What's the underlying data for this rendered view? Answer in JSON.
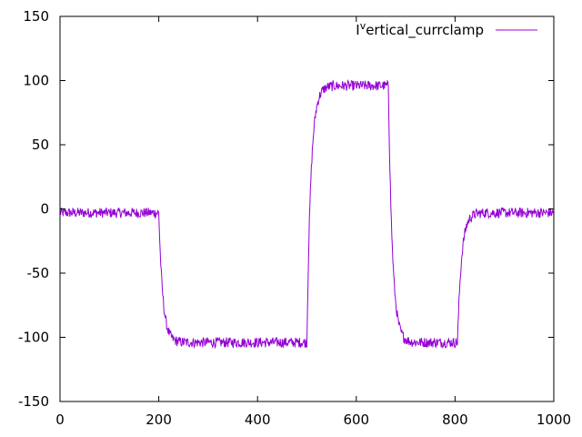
{
  "chart_data": {
    "type": "line",
    "title": "",
    "xlabel": "",
    "ylabel": "",
    "xlim": [
      0,
      1000
    ],
    "ylim": [
      -150,
      150
    ],
    "x_ticks": [
      0,
      200,
      400,
      600,
      800,
      1000
    ],
    "y_ticks": [
      -150,
      -100,
      -50,
      0,
      50,
      100,
      150
    ],
    "grid": false,
    "legend": {
      "placement": "top-right",
      "entries": [
        "I^vertical_currclamp"
      ]
    },
    "legend_display": {
      "base": "I",
      "superscript": "v",
      "rest": "ertical_currclamp"
    },
    "series": [
      {
        "name": "I^vertical_currclamp",
        "color": "#9400d3",
        "noise_amplitude": 4,
        "segments": [
          {
            "x_start": 0,
            "x_end": 200,
            "level": -3
          },
          {
            "x_start": 200,
            "x_end": 500,
            "from": -3,
            "to": -104,
            "tau": 8
          },
          {
            "x_start": 500,
            "x_end": 665,
            "from": -104,
            "to": 96,
            "tau": 8
          },
          {
            "x_start": 665,
            "x_end": 805,
            "from": 96,
            "to": -104,
            "tau": 8
          },
          {
            "x_start": 805,
            "x_end": 1000,
            "from": -104,
            "to": -3,
            "tau": 8
          }
        ]
      }
    ]
  }
}
